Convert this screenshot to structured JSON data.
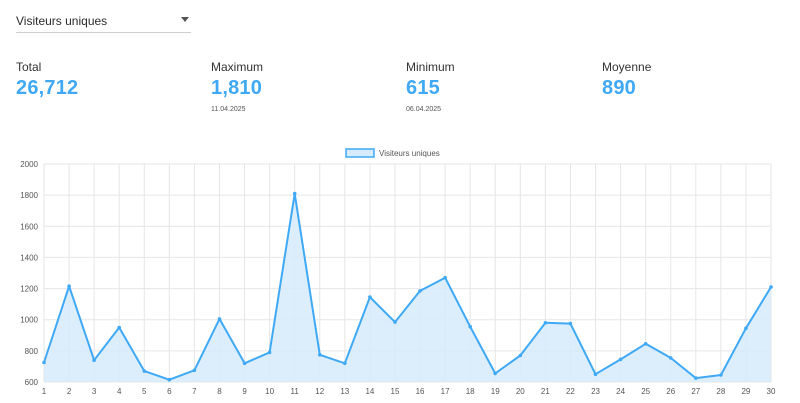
{
  "selector": {
    "value": "Visiteurs uniques"
  },
  "stats": [
    {
      "label": "Total",
      "value": "26,712",
      "date": ""
    },
    {
      "label": "Maximum",
      "value": "1,810",
      "date": "11.04.2025"
    },
    {
      "label": "Minimum",
      "value": "615",
      "date": "06.04.2025"
    },
    {
      "label": "Moyenne",
      "value": "890",
      "date": ""
    }
  ],
  "colors": {
    "accent": "#3fa9f5",
    "fill": "#d6ebfb",
    "grid": "#e6e6e6"
  },
  "chart_data": {
    "type": "area",
    "title": "",
    "xlabel": "",
    "ylabel": "",
    "legend": {
      "placement": "top-center",
      "entries": [
        "Visiteurs uniques"
      ]
    },
    "grid": true,
    "x": [
      1,
      2,
      3,
      4,
      5,
      6,
      7,
      8,
      9,
      10,
      11,
      12,
      13,
      14,
      15,
      16,
      17,
      18,
      19,
      20,
      21,
      22,
      23,
      24,
      25,
      26,
      27,
      28,
      29,
      30
    ],
    "ylim": [
      600,
      2000
    ],
    "yticks": [
      600,
      800,
      1000,
      1200,
      1400,
      1600,
      1800,
      2000
    ],
    "series": [
      {
        "name": "Visiteurs uniques",
        "values": [
          725,
          1215,
          740,
          950,
          670,
          615,
          675,
          1005,
          720,
          790,
          1810,
          775,
          720,
          1145,
          985,
          1185,
          1270,
          955,
          655,
          770,
          980,
          975,
          650,
          745,
          845,
          755,
          625,
          645,
          945,
          1210
        ]
      }
    ]
  }
}
